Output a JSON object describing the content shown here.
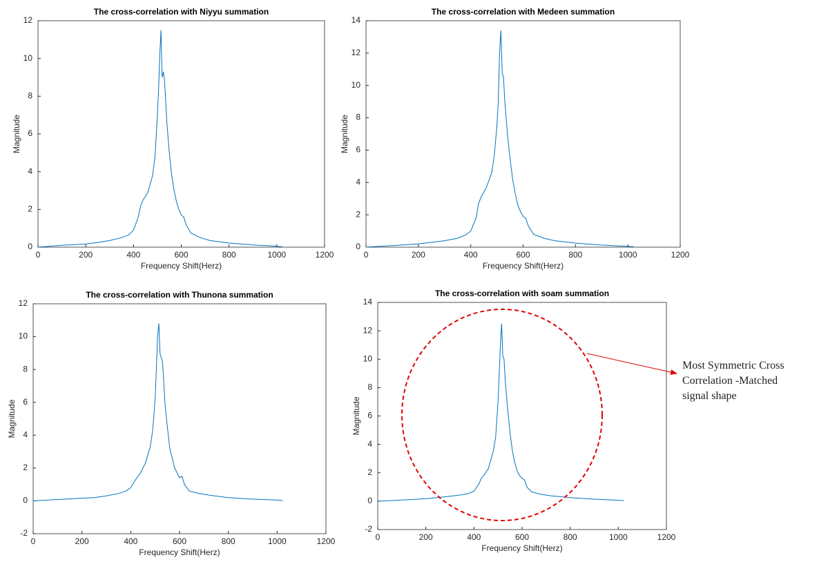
{
  "chart_data": [
    {
      "type": "line",
      "title": "The cross-correlation with Niyyu summation",
      "xlabel": "Frequency Shift(Herz)",
      "ylabel": "Magnitude",
      "color": "#0072bd",
      "x": [
        0,
        50,
        100,
        150,
        200,
        250,
        300,
        350,
        380,
        400,
        420,
        430,
        440,
        460,
        480,
        490,
        500,
        505,
        510,
        515,
        520,
        525,
        530,
        540,
        550,
        560,
        570,
        580,
        590,
        600,
        610,
        620,
        640,
        680,
        720,
        800,
        900,
        1000,
        1023
      ],
      "values": [
        0,
        0.05,
        0.1,
        0.13,
        0.17,
        0.25,
        0.35,
        0.5,
        0.65,
        0.9,
        1.6,
        2.2,
        2.5,
        2.9,
        3.8,
        4.8,
        7,
        8.3,
        10.2,
        11.5,
        9,
        9.3,
        8.8,
        6.5,
        5,
        3.8,
        3,
        2.4,
        2,
        1.7,
        1.6,
        1.2,
        0.75,
        0.5,
        0.35,
        0.22,
        0.12,
        0.05,
        0.02
      ],
      "xlim": [
        0,
        1200
      ],
      "xticks": [
        0,
        200,
        400,
        600,
        800,
        1000,
        1200
      ],
      "ylim": [
        0,
        12
      ],
      "yticks": [
        0,
        2,
        4,
        6,
        8,
        10,
        12
      ]
    },
    {
      "type": "line",
      "title": "The cross-correlation with Medeen summation",
      "xlabel": "Frequency Shift(Herz)",
      "ylabel": "Magnitude",
      "color": "#0072bd",
      "x": [
        0,
        50,
        100,
        150,
        200,
        250,
        300,
        350,
        380,
        400,
        420,
        430,
        440,
        460,
        480,
        490,
        500,
        505,
        510,
        515,
        520,
        525,
        530,
        540,
        550,
        560,
        570,
        580,
        590,
        600,
        610,
        620,
        640,
        680,
        720,
        800,
        900,
        1000,
        1023
      ],
      "values": [
        0,
        0.05,
        0.1,
        0.15,
        0.2,
        0.3,
        0.4,
        0.55,
        0.75,
        1.0,
        1.8,
        2.7,
        3.1,
        3.7,
        4.6,
        5.7,
        7.5,
        9,
        12,
        13.4,
        10.8,
        10.5,
        9,
        7,
        5.5,
        4.2,
        3.3,
        2.6,
        2.2,
        1.9,
        1.8,
        1.3,
        0.8,
        0.55,
        0.4,
        0.25,
        0.13,
        0.05,
        0.02
      ],
      "xlim": [
        0,
        1200
      ],
      "xticks": [
        0,
        200,
        400,
        600,
        800,
        1000,
        1200
      ],
      "ylim": [
        0,
        14
      ],
      "yticks": [
        0,
        2,
        4,
        6,
        8,
        10,
        12,
        14
      ]
    },
    {
      "type": "line",
      "title": "The cross-correlation with Thunona summation",
      "xlabel": "Frequency Shift(Herz)",
      "ylabel": "Magnitude",
      "color": "#0072bd",
      "x": [
        0,
        50,
        100,
        150,
        200,
        250,
        300,
        350,
        380,
        400,
        420,
        430,
        440,
        460,
        480,
        490,
        500,
        505,
        510,
        515,
        520,
        525,
        530,
        540,
        550,
        560,
        570,
        580,
        590,
        600,
        610,
        620,
        640,
        680,
        720,
        800,
        900,
        1000,
        1023
      ],
      "values": [
        0,
        0.04,
        0.08,
        0.12,
        0.16,
        0.2,
        0.3,
        0.45,
        0.6,
        0.8,
        1.3,
        1.5,
        1.7,
        2.3,
        3.3,
        4.3,
        6.2,
        8,
        10,
        10.8,
        9,
        8.7,
        8.5,
        6,
        4.5,
        3.2,
        2.6,
        2,
        1.7,
        1.4,
        1.5,
        1,
        0.6,
        0.45,
        0.35,
        0.2,
        0.1,
        0.05,
        0.02
      ],
      "xlim": [
        0,
        1200
      ],
      "xticks": [
        0,
        200,
        400,
        600,
        800,
        1000,
        1200
      ],
      "ylim": [
        -2,
        12
      ],
      "yticks": [
        -2,
        0,
        2,
        4,
        6,
        8,
        10,
        12
      ]
    },
    {
      "type": "line",
      "title": "The cross-correlation with soam  summation",
      "xlabel": "Frequency Shift(Herz)",
      "ylabel": "Magnitude",
      "color": "#0072bd",
      "x": [
        0,
        50,
        100,
        150,
        200,
        250,
        300,
        350,
        380,
        400,
        420,
        430,
        440,
        460,
        480,
        490,
        500,
        505,
        510,
        515,
        520,
        525,
        530,
        540,
        550,
        560,
        570,
        580,
        590,
        600,
        610,
        620,
        640,
        680,
        720,
        800,
        900,
        1000,
        1023
      ],
      "values": [
        0,
        0.04,
        0.08,
        0.12,
        0.18,
        0.25,
        0.35,
        0.45,
        0.55,
        0.7,
        1.2,
        1.6,
        1.8,
        2.3,
        3.5,
        4.5,
        7,
        9,
        11,
        12.5,
        10.2,
        10,
        8.5,
        6.5,
        4.8,
        3.5,
        2.7,
        2.1,
        1.8,
        1.6,
        1.5,
        1.0,
        0.65,
        0.48,
        0.38,
        0.25,
        0.14,
        0.06,
        0.03
      ],
      "xlim": [
        0,
        1200
      ],
      "xticks": [
        0,
        200,
        400,
        600,
        800,
        1000,
        1200
      ],
      "ylim": [
        -2,
        14
      ],
      "yticks": [
        -2,
        0,
        2,
        4,
        6,
        8,
        10,
        12,
        14
      ],
      "annotation": [
        "Most Symmetric Cross",
        "Correlation  -Matched",
        "signal shape"
      ]
    }
  ]
}
